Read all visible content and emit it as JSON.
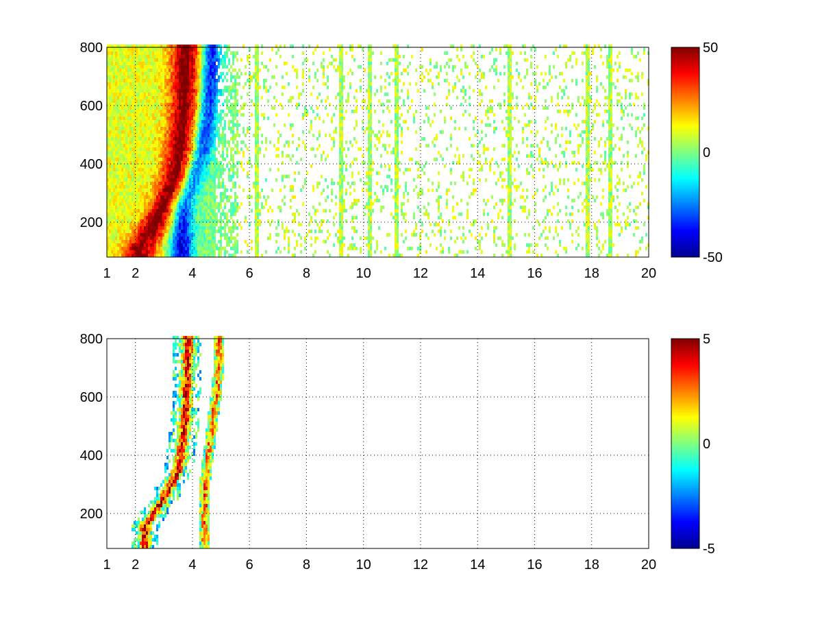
{
  "chart_data": [
    {
      "type": "heatmap",
      "title": "",
      "xlabel": "",
      "ylabel": "",
      "xlim": [
        1,
        20
      ],
      "ylim": [
        80,
        800
      ],
      "x_ticks": [
        1,
        2,
        4,
        6,
        8,
        10,
        12,
        14,
        16,
        18,
        20
      ],
      "y_ticks": [
        200,
        400,
        600,
        800
      ],
      "grid": true,
      "colormap": "jet",
      "colorbar": {
        "clim": [
          -50,
          50
        ],
        "ticks": [
          50,
          0,
          -50
        ]
      },
      "approx_pattern": {
        "positive_ridge_x_at_y": [
          [
            100,
            2.2
          ],
          [
            200,
            2.8
          ],
          [
            300,
            3.3
          ],
          [
            400,
            3.6
          ],
          [
            600,
            3.8
          ],
          [
            800,
            3.85
          ]
        ],
        "negative_ridge_x_at_y": [
          [
            250,
            3.6
          ],
          [
            350,
            4.0
          ],
          [
            450,
            4.3
          ],
          [
            600,
            4.5
          ],
          [
            750,
            4.6
          ]
        ],
        "peak_positive": 50,
        "peak_negative": -50,
        "sparse_noise_x_range": [
          5.5,
          20
        ],
        "noise_stripes_x": [
          6.2,
          9.2,
          10.2,
          11.1,
          15.1,
          17.8,
          18.6
        ]
      }
    },
    {
      "type": "heatmap",
      "title": "",
      "xlabel": "",
      "ylabel": "",
      "xlim": [
        1,
        20
      ],
      "ylim": [
        80,
        800
      ],
      "x_ticks": [
        1,
        2,
        4,
        6,
        8,
        10,
        12,
        14,
        16,
        18,
        20
      ],
      "y_ticks": [
        200,
        400,
        600,
        800
      ],
      "grid": true,
      "colormap": "jet",
      "colorbar": {
        "clim": [
          -5,
          5
        ],
        "ticks": [
          5,
          0,
          -5
        ]
      },
      "approx_pattern": {
        "positive_ridge_x_at_y": [
          [
            150,
            2.3
          ],
          [
            250,
            3.0
          ],
          [
            350,
            3.5
          ],
          [
            500,
            3.7
          ],
          [
            700,
            3.8
          ]
        ],
        "secondary_ridge_x_at_y": [
          [
            300,
            4.4
          ],
          [
            450,
            4.6
          ],
          [
            600,
            4.8
          ],
          [
            700,
            4.9
          ]
        ],
        "data_x_range": [
          1.5,
          5.6
        ]
      }
    }
  ]
}
